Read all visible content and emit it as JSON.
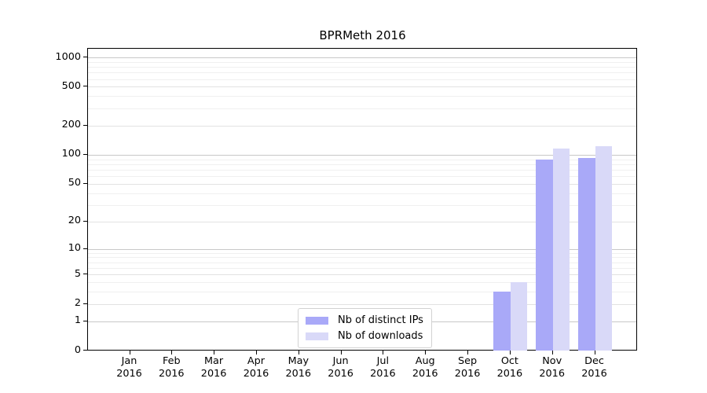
{
  "chart_data": {
    "type": "bar",
    "title": "BPRMeth 2016",
    "categories": [
      "Jan",
      "Feb",
      "Mar",
      "Apr",
      "May",
      "Jun",
      "Jul",
      "Aug",
      "Sep",
      "Oct",
      "Nov",
      "Dec"
    ],
    "category_year": "2016",
    "series": [
      {
        "name": "Nb of distinct IPs",
        "color": "#a9a9f8",
        "values": [
          0,
          0,
          0,
          0,
          0,
          0,
          0,
          0,
          0,
          3,
          90,
          92
        ]
      },
      {
        "name": "Nb of downloads",
        "color": "#d9d9f8",
        "values": [
          0,
          0,
          0,
          0,
          0,
          0,
          0,
          0,
          0,
          4,
          116,
          123
        ]
      }
    ],
    "y_axis": {
      "ticks": [
        0,
        1,
        2,
        5,
        10,
        20,
        50,
        100,
        200,
        500,
        1000
      ],
      "scale": "log10(1+x)",
      "top_value": 1227
    },
    "x_axis": {
      "label_line2": "2016"
    },
    "legend": {
      "position": "lower center"
    },
    "grid": {
      "orientation": "horizontal",
      "major_ticks": [
        1,
        10,
        100,
        1000
      ],
      "major_color": "#c8c8c8",
      "labeled_minor_color": "#e2e2e2",
      "minor_color": "#f0f0f0"
    },
    "colors": {
      "axis": "#000000",
      "background": "#ffffff"
    }
  }
}
